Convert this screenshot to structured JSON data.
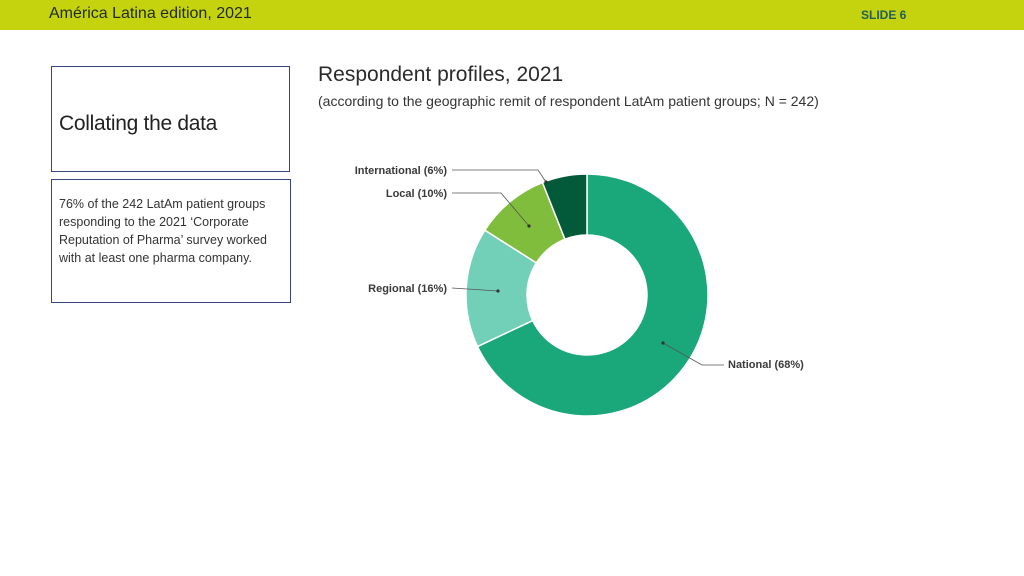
{
  "header": {
    "title": "América Latina edition, 2021",
    "slide_label": "SLIDE 6"
  },
  "sidebar": {
    "title": "Collating  the data",
    "note": "76% of the 242 LatAm patient groups responding to the 2021 ‘Corporate Reputation of Pharma’ survey worked with at least one pharma company."
  },
  "colors": {
    "header_bar": "#c5d30f",
    "national": "#1aa87a",
    "regional": "#73d0b8",
    "local": "#80bd3c",
    "international": "#035a3a"
  },
  "chart_data": {
    "type": "pie",
    "donut": true,
    "title": "Respondent profiles, 2021",
    "subtitle": "(according to the geographic remit of respondent LatAm patient groups; N = 242)",
    "categories": [
      "National",
      "Regional",
      "Local",
      "International"
    ],
    "values": [
      68,
      16,
      10,
      6
    ],
    "labels": [
      "National (68%)",
      "Regional (16%)",
      "Local (10%)",
      "International (6%)"
    ],
    "unit": "%"
  }
}
